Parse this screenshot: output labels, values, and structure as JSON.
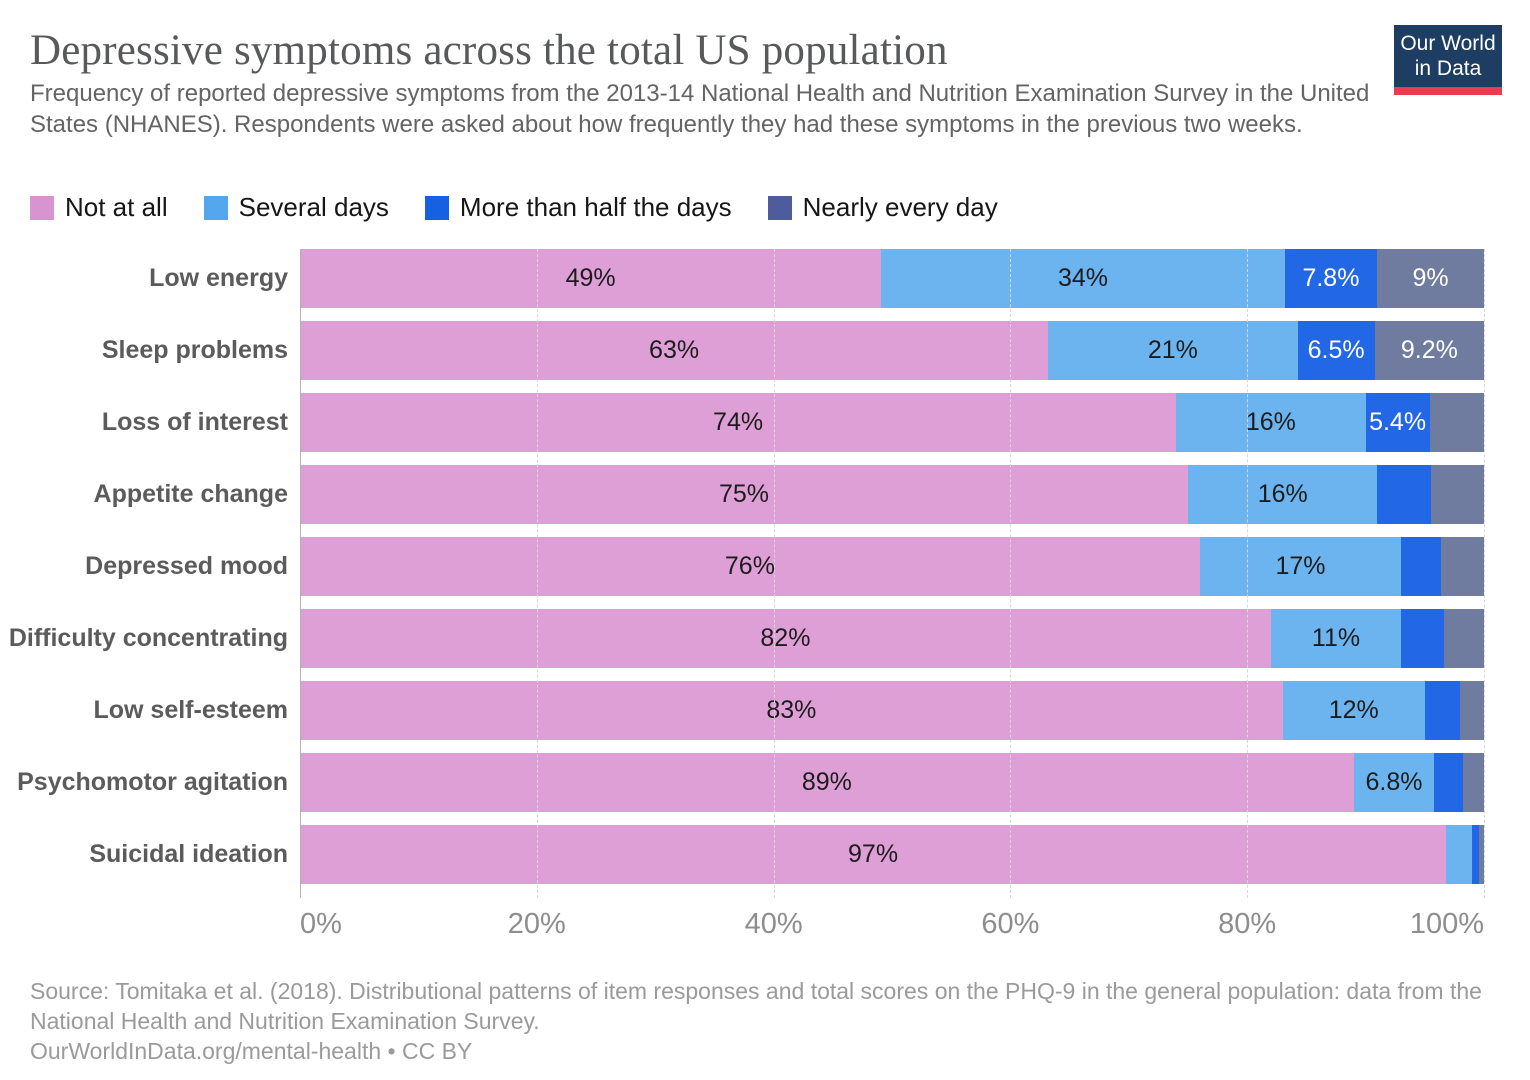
{
  "header": {
    "title": "Depressive symptoms across the total US population",
    "subtitle": "Frequency of reported depressive symptoms from the 2013-14 National Health and Nutrition Examination Survey in the United States (NHANES). Respondents were asked about how frequently they had these symptoms in the previous two weeks.",
    "logo": {
      "line1": "Our World",
      "line2": "in Data",
      "bg_color": "#1d3d63",
      "accent_color": "#e63e4c"
    }
  },
  "chart_data": {
    "type": "bar",
    "orientation": "horizontal",
    "stacked": true,
    "title": "Depressive symptoms across the total US population",
    "xlabel": "",
    "ylabel": "",
    "xlim": [
      0,
      100
    ],
    "x_tick_labels": [
      "0%",
      "20%",
      "40%",
      "60%",
      "80%",
      "100%"
    ],
    "grid": "vertical-dashed",
    "legend_position": "top",
    "categories": [
      "Low energy",
      "Sleep problems",
      "Loss of interest",
      "Appetite change",
      "Depressed mood",
      "Difficulty concentrating",
      "Low self-esteem",
      "Psychomotor agitation",
      "Suicidal ideation"
    ],
    "series": [
      {
        "name": "Not at all",
        "color": "#DE9FD6",
        "legend_color": "#D794D0",
        "label_text_color": "#1c1c1c",
        "values": [
          49,
          63,
          74,
          75,
          76,
          82,
          83,
          89,
          96.8
        ],
        "labels": [
          "49%",
          "63%",
          "74%",
          "75%",
          "76%",
          "82%",
          "83%",
          "89%",
          "97%"
        ]
      },
      {
        "name": "Several days",
        "color": "#6CB4EF",
        "legend_color": "#54A7EF",
        "label_text_color": "#1c1c1c",
        "values": [
          34,
          21,
          16,
          16,
          17,
          11,
          12,
          6.8,
          2.2
        ],
        "labels": [
          "34%",
          "21%",
          "16%",
          "16%",
          "17%",
          "11%",
          "12%",
          "6.8%",
          ""
        ]
      },
      {
        "name": "More than half the days",
        "color": "#2268E6",
        "legend_color": "#1561E2",
        "label_text_color": "#ffffff",
        "values": [
          7.8,
          6.5,
          5.4,
          4.5,
          3.4,
          3.6,
          3.0,
          2.4,
          0.6
        ],
        "labels": [
          "7.8%",
          "6.5%",
          "5.4%",
          "",
          "",
          "",
          "",
          "",
          ""
        ]
      },
      {
        "name": "Nearly every day",
        "color": "#6F7C9F",
        "legend_color": "#4E5C9B",
        "label_text_color": "#ffffff",
        "values": [
          9,
          9.2,
          4.6,
          4.5,
          3.6,
          3.4,
          2.0,
          1.8,
          0.4
        ],
        "labels": [
          "9%",
          "9.2%",
          "",
          "",
          "",
          "",
          "",
          "",
          ""
        ]
      }
    ]
  },
  "footer": {
    "source": "Source: Tomitaka et al. (2018). Distributional patterns of item responses and total scores on the PHQ-9 in the general population: data from the National Health and Nutrition Examination Survey.",
    "license": "OurWorldInData.org/mental-health • CC BY"
  }
}
